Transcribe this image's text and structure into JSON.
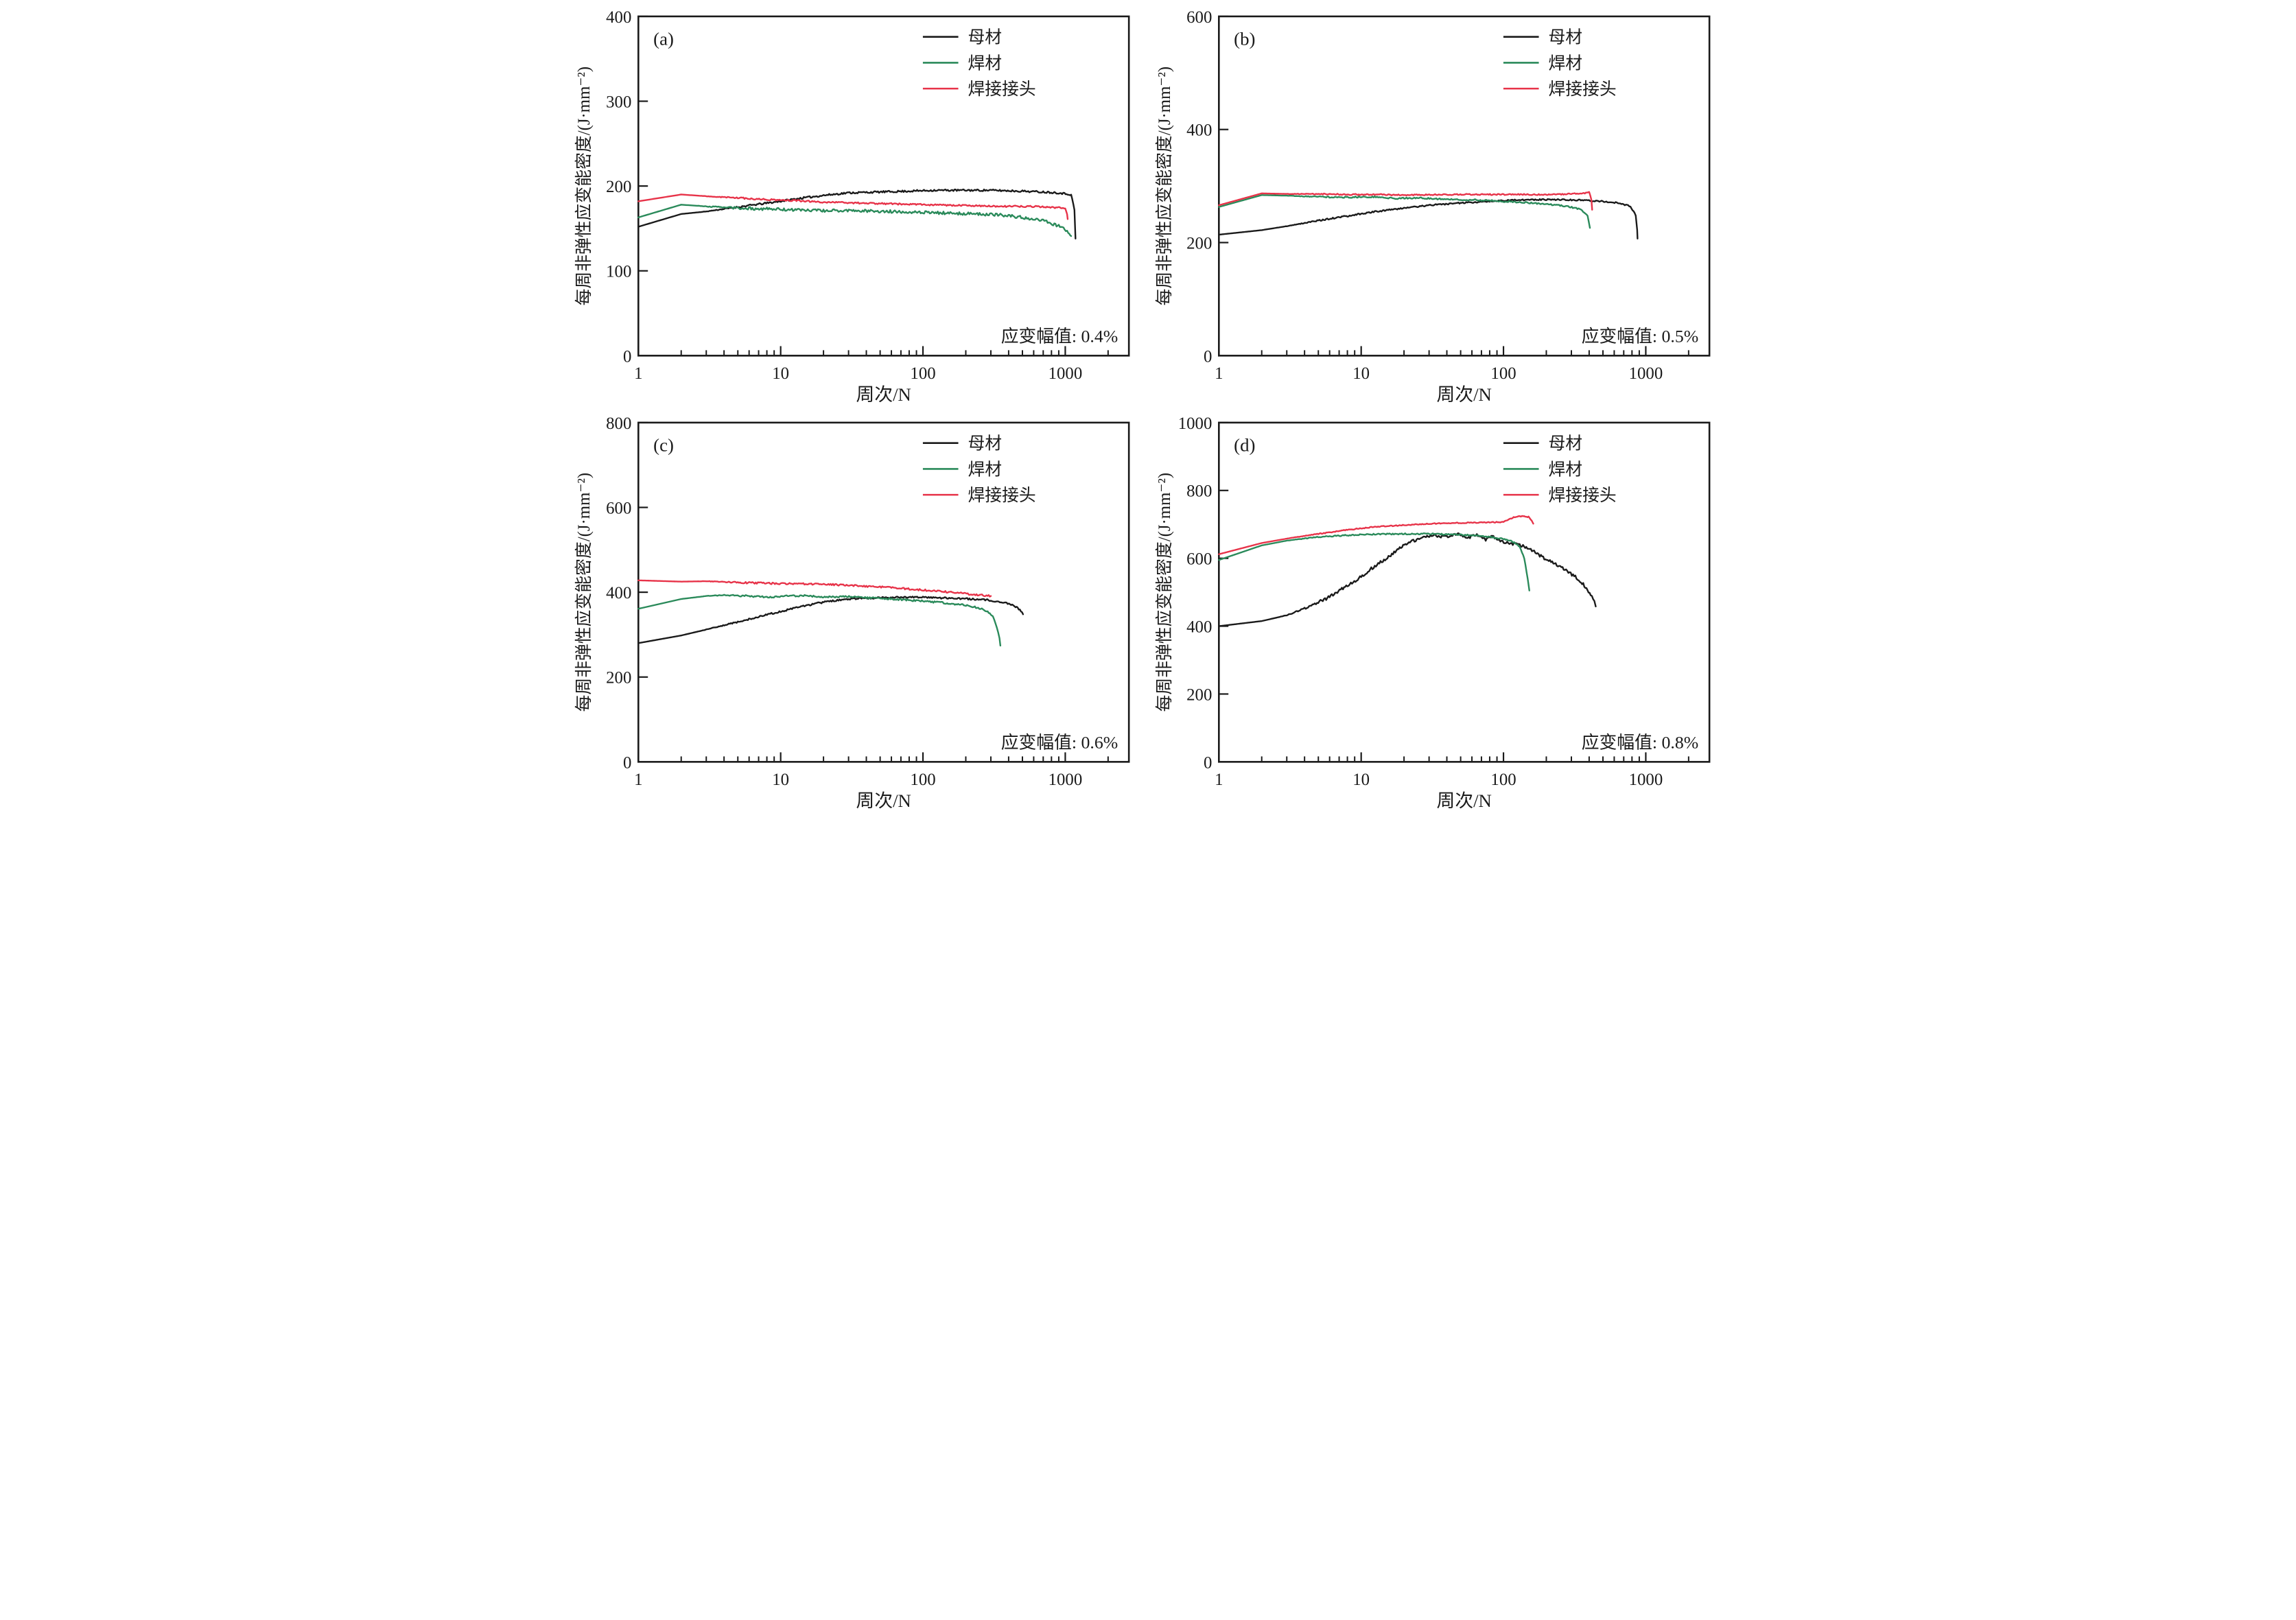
{
  "figure": {
    "background": "#ffffff",
    "axis_color": "#1a1a1a",
    "xlabel": "周次/N",
    "ylabel": "每周非弹性应变能密度/(J·mm⁻²)",
    "legend_entries": [
      "母材",
      "焊材",
      "焊接接头"
    ],
    "legend_colors": [
      "#1a1a1a",
      "#2a8a5a",
      "#e73349"
    ]
  },
  "chart_data": [
    {
      "type": "line",
      "panel": "(a)",
      "annotation": "应变幅值: 0.4%",
      "xlabel": "周次/N",
      "ylabel": "每周非弹性应变能密度/(J·mm⁻²)",
      "xscale": "log",
      "xlim": [
        1,
        2800
      ],
      "ylim": [
        0,
        400
      ],
      "yticks": [
        0,
        100,
        200,
        300,
        400
      ],
      "xticks": [
        1,
        10,
        100,
        1000
      ],
      "legend_position": "top-right",
      "grid": false,
      "series": [
        {
          "name": "母材",
          "color": "#1a1a1a",
          "noise": 1.1,
          "points": [
            [
              1,
              152
            ],
            [
              2,
              167
            ],
            [
              3,
              170
            ],
            [
              4,
              173
            ],
            [
              6,
              177
            ],
            [
              9,
              181
            ],
            [
              13,
              185
            ],
            [
              20,
              189
            ],
            [
              30,
              192
            ],
            [
              50,
              193
            ],
            [
              80,
              194
            ],
            [
              120,
              195
            ],
            [
              200,
              195
            ],
            [
              300,
              195
            ],
            [
              500,
              194
            ],
            [
              700,
              193
            ],
            [
              900,
              192
            ],
            [
              1100,
              190
            ],
            [
              1160,
              172
            ],
            [
              1180,
              138
            ]
          ]
        },
        {
          "name": "焊材",
          "color": "#2a8a5a",
          "noise": 1.7,
          "points": [
            [
              1,
              163
            ],
            [
              2,
              178
            ],
            [
              3,
              176
            ],
            [
              5,
              174
            ],
            [
              8,
              173
            ],
            [
              12,
              172
            ],
            [
              20,
              171
            ],
            [
              35,
              171
            ],
            [
              60,
              170
            ],
            [
              100,
              169
            ],
            [
              150,
              168
            ],
            [
              250,
              167
            ],
            [
              350,
              166
            ],
            [
              500,
              163
            ],
            [
              700,
              159
            ],
            [
              900,
              153
            ],
            [
              1050,
              146
            ],
            [
              1100,
              141
            ]
          ]
        },
        {
          "name": "焊接接头",
          "color": "#e73349",
          "noise": 0.9,
          "points": [
            [
              1,
              182
            ],
            [
              2,
              190
            ],
            [
              3,
              188
            ],
            [
              5,
              186
            ],
            [
              8,
              184
            ],
            [
              12,
              183
            ],
            [
              20,
              181
            ],
            [
              35,
              180
            ],
            [
              60,
              179
            ],
            [
              100,
              178
            ],
            [
              200,
              177
            ],
            [
              350,
              176
            ],
            [
              600,
              176
            ],
            [
              800,
              175
            ],
            [
              1000,
              174
            ],
            [
              1030,
              167
            ],
            [
              1040,
              161
            ]
          ]
        }
      ]
    },
    {
      "type": "line",
      "panel": "(b)",
      "annotation": "应变幅值: 0.5%",
      "xlabel": "周次/N",
      "ylabel": "每周非弹性应变能密度/(J·mm⁻²)",
      "xscale": "log",
      "xlim": [
        1,
        2800
      ],
      "ylim": [
        0,
        600
      ],
      "yticks": [
        0,
        200,
        400,
        600
      ],
      "xticks": [
        1,
        10,
        100,
        1000
      ],
      "legend_position": "top-right",
      "grid": false,
      "series": [
        {
          "name": "母材",
          "color": "#1a1a1a",
          "noise": 1.2,
          "points": [
            [
              1,
              214
            ],
            [
              2,
              222
            ],
            [
              3,
              229
            ],
            [
              5,
              239
            ],
            [
              8,
              247
            ],
            [
              12,
              254
            ],
            [
              20,
              261
            ],
            [
              30,
              266
            ],
            [
              50,
              270
            ],
            [
              80,
              273
            ],
            [
              120,
              275
            ],
            [
              180,
              276
            ],
            [
              250,
              276
            ],
            [
              350,
              275
            ],
            [
              500,
              273
            ],
            [
              650,
              270
            ],
            [
              780,
              264
            ],
            [
              850,
              248
            ],
            [
              870,
              222
            ],
            [
              875,
              207
            ]
          ]
        },
        {
          "name": "焊材",
          "color": "#2a8a5a",
          "noise": 1.3,
          "points": [
            [
              1,
              263
            ],
            [
              2,
              284
            ],
            [
              3,
              283
            ],
            [
              5,
              281
            ],
            [
              8,
              280
            ],
            [
              12,
              281
            ],
            [
              18,
              278
            ],
            [
              25,
              279
            ],
            [
              35,
              277
            ],
            [
              50,
              276
            ],
            [
              70,
              275
            ],
            [
              100,
              273
            ],
            [
              140,
              271
            ],
            [
              200,
              268
            ],
            [
              280,
              264
            ],
            [
              350,
              259
            ],
            [
              390,
              248
            ],
            [
              405,
              226
            ]
          ]
        },
        {
          "name": "焊接接头",
          "color": "#e73349",
          "noise": 1.1,
          "points": [
            [
              1,
              266
            ],
            [
              2,
              287
            ],
            [
              3,
              286
            ],
            [
              5,
              286
            ],
            [
              8,
              285
            ],
            [
              12,
              285
            ],
            [
              20,
              284
            ],
            [
              35,
              285
            ],
            [
              60,
              285
            ],
            [
              100,
              285
            ],
            [
              150,
              285
            ],
            [
              220,
              285
            ],
            [
              300,
              286
            ],
            [
              360,
              287
            ],
            [
              400,
              289
            ],
            [
              415,
              275
            ],
            [
              420,
              258
            ]
          ]
        }
      ]
    },
    {
      "type": "line",
      "panel": "(c)",
      "annotation": "应变幅值: 0.6%",
      "xlabel": "周次/N",
      "ylabel": "每周非弹性应变能密度/(J·mm⁻²)",
      "xscale": "log",
      "xlim": [
        1,
        2800
      ],
      "ylim": [
        0,
        800
      ],
      "yticks": [
        0,
        200,
        400,
        600,
        800
      ],
      "xticks": [
        1,
        10,
        100,
        1000
      ],
      "legend_position": "top-right",
      "grid": false,
      "series": [
        {
          "name": "母材",
          "color": "#1a1a1a",
          "noise": 2.0,
          "points": [
            [
              1,
              280
            ],
            [
              2,
              298
            ],
            [
              3,
              312
            ],
            [
              5,
              330
            ],
            [
              8,
              347
            ],
            [
              12,
              361
            ],
            [
              18,
              374
            ],
            [
              25,
              381
            ],
            [
              35,
              385
            ],
            [
              50,
              387
            ],
            [
              70,
              388
            ],
            [
              100,
              388
            ],
            [
              150,
              386
            ],
            [
              220,
              384
            ],
            [
              300,
              381
            ],
            [
              380,
              375
            ],
            [
              440,
              368
            ],
            [
              480,
              359
            ],
            [
              505,
              348
            ]
          ]
        },
        {
          "name": "焊材",
          "color": "#2a8a5a",
          "noise": 2.0,
          "points": [
            [
              1,
              361
            ],
            [
              2,
              384
            ],
            [
              3,
              391
            ],
            [
              4,
              393
            ],
            [
              6,
              391
            ],
            [
              8,
              388
            ],
            [
              11,
              391
            ],
            [
              15,
              392
            ],
            [
              20,
              388
            ],
            [
              28,
              390
            ],
            [
              40,
              387
            ],
            [
              55,
              385
            ],
            [
              75,
              382
            ],
            [
              100,
              379
            ],
            [
              140,
              375
            ],
            [
              190,
              370
            ],
            [
              240,
              364
            ],
            [
              280,
              356
            ],
            [
              310,
              342
            ],
            [
              330,
              318
            ],
            [
              345,
              290
            ],
            [
              350,
              274
            ]
          ]
        },
        {
          "name": "焊接接头",
          "color": "#e73349",
          "noise": 2.0,
          "points": [
            [
              1,
              428
            ],
            [
              2,
              425
            ],
            [
              3,
              426
            ],
            [
              5,
              423
            ],
            [
              8,
              421
            ],
            [
              12,
              420
            ],
            [
              18,
              419
            ],
            [
              28,
              417
            ],
            [
              40,
              414
            ],
            [
              60,
              411
            ],
            [
              85,
              407
            ],
            [
              120,
              403
            ],
            [
              160,
              400
            ],
            [
              210,
              396
            ],
            [
              260,
              393
            ],
            [
              300,
              391
            ]
          ]
        }
      ]
    },
    {
      "type": "line",
      "panel": "(d)",
      "annotation": "应变幅值: 0.8%",
      "xlabel": "周次/N",
      "ylabel": "每周非弹性应变能密度/(J·mm⁻²)",
      "xscale": "log",
      "xlim": [
        1,
        2800
      ],
      "ylim": [
        0,
        1000
      ],
      "yticks": [
        0,
        200,
        400,
        600,
        800,
        1000
      ],
      "xticks": [
        1,
        10,
        100,
        1000
      ],
      "legend_position": "top-right",
      "grid": false,
      "series": [
        {
          "name": "母材",
          "color": "#1a1a1a",
          "noise": 4.5,
          "points": [
            [
              1,
              400
            ],
            [
              2,
              415
            ],
            [
              3,
              432
            ],
            [
              4,
              452
            ],
            [
              6,
              486
            ],
            [
              8,
              520
            ],
            [
              10,
              545
            ],
            [
              12,
              572
            ],
            [
              15,
              600
            ],
            [
              18,
              625
            ],
            [
              22,
              648
            ],
            [
              27,
              662
            ],
            [
              33,
              668
            ],
            [
              40,
              662
            ],
            [
              48,
              672
            ],
            [
              55,
              660
            ],
            [
              65,
              670
            ],
            [
              75,
              655
            ],
            [
              85,
              665
            ],
            [
              95,
              650
            ],
            [
              110,
              645
            ],
            [
              130,
              638
            ],
            [
              150,
              630
            ],
            [
              180,
              608
            ],
            [
              220,
              588
            ],
            [
              270,
              568
            ],
            [
              320,
              545
            ],
            [
              370,
              520
            ],
            [
              410,
              492
            ],
            [
              435,
              470
            ],
            [
              445,
              458
            ]
          ]
        },
        {
          "name": "焊材",
          "color": "#2a8a5a",
          "noise": 1.8,
          "points": [
            [
              1,
              595
            ],
            [
              2,
              638
            ],
            [
              3,
              652
            ],
            [
              5,
              663
            ],
            [
              8,
              668
            ],
            [
              12,
              671
            ],
            [
              20,
              672
            ],
            [
              30,
              672
            ],
            [
              45,
              670
            ],
            [
              60,
              668
            ],
            [
              80,
              663
            ],
            [
              100,
              657
            ],
            [
              115,
              650
            ],
            [
              130,
              635
            ],
            [
              140,
              600
            ],
            [
              148,
              540
            ],
            [
              152,
              505
            ]
          ]
        },
        {
          "name": "焊接接头",
          "color": "#e73349",
          "noise": 1.4,
          "points": [
            [
              1,
              612
            ],
            [
              2,
              645
            ],
            [
              3,
              658
            ],
            [
              5,
              672
            ],
            [
              8,
              684
            ],
            [
              12,
              692
            ],
            [
              20,
              698
            ],
            [
              30,
              702
            ],
            [
              45,
              704
            ],
            [
              60,
              705
            ],
            [
              80,
              706
            ],
            [
              100,
              707
            ],
            [
              110,
              715
            ],
            [
              120,
              722
            ],
            [
              135,
              724
            ],
            [
              150,
              722
            ],
            [
              158,
              712
            ],
            [
              162,
              702
            ]
          ]
        }
      ]
    }
  ]
}
